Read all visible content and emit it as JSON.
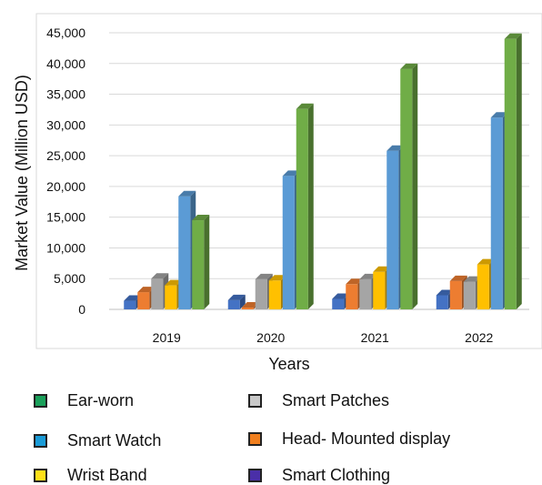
{
  "chart_data": {
    "type": "bar",
    "categories": [
      "2019",
      "2020",
      "2021",
      "2022"
    ],
    "series": [
      {
        "name": "Smart Clothing",
        "color": "#4472c4",
        "values": [
          1400,
          1500,
          1700,
          2300
        ]
      },
      {
        "name": "Head- Mounted display",
        "color": "#ed7d31",
        "values": [
          2800,
          300,
          4100,
          4600
        ]
      },
      {
        "name": "Smart Patches",
        "color": "#a5a5a5",
        "values": [
          5000,
          4900,
          4900,
          4500
        ]
      },
      {
        "name": "Wrist Band",
        "color": "#ffc000",
        "values": [
          3900,
          4700,
          6100,
          7300
        ]
      },
      {
        "name": "Smart Watch",
        "color": "#5b9bd5",
        "values": [
          18400,
          21700,
          25800,
          31200
        ]
      },
      {
        "name": "Ear-worn",
        "color": "#70ad47",
        "values": [
          14500,
          32600,
          39100,
          44000
        ]
      }
    ],
    "ylim": [
      0,
      45000
    ],
    "yticks": [
      "0",
      "5,000",
      "10,000",
      "15,000",
      "20,000",
      "25,000",
      "30,000",
      "35,000",
      "40,000",
      "45,000"
    ],
    "ytick_values": [
      0,
      5000,
      10000,
      15000,
      20000,
      25000,
      30000,
      35000,
      40000,
      45000
    ],
    "xlabel": "Years",
    "ylabel": "Market Value (Million USD)",
    "grid": true,
    "legend_position": "bottom"
  },
  "legend": [
    {
      "label": "Ear-worn",
      "color": "#1aa05a"
    },
    {
      "label": "Smart Patches",
      "color": "#c8c8c8"
    },
    {
      "label": "Smart Watch",
      "color": "#1a9bd7"
    },
    {
      "label": "Head- Mounted display",
      "color": "#f07f1e"
    },
    {
      "label": "Wrist Band",
      "color": "#ffe01a"
    },
    {
      "label": "Smart Clothing",
      "color": "#4a2fa8"
    }
  ]
}
